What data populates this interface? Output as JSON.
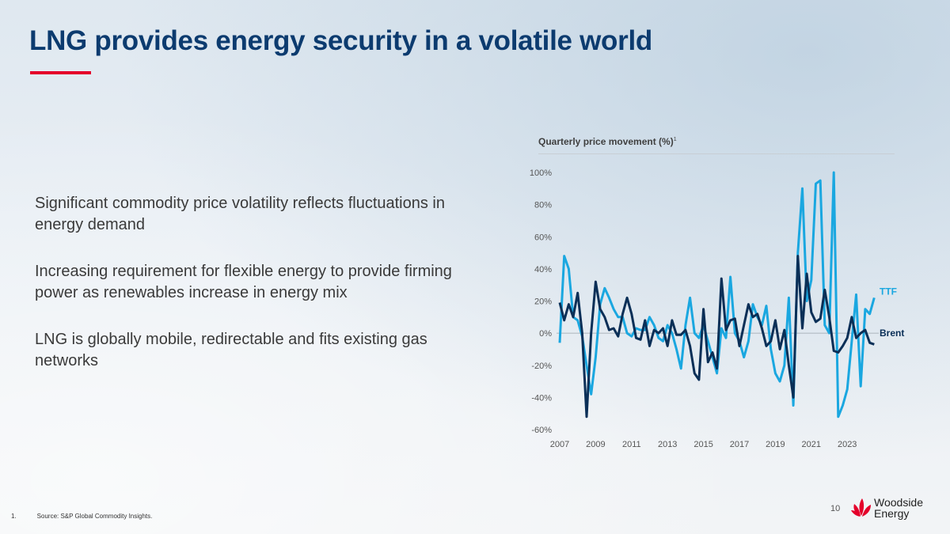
{
  "slide": {
    "title": "LNG provides energy security in a volatile world",
    "bullets": [
      "Significant commodity price volatility reflects fluctuations in energy demand",
      "Increasing requirement for flexible energy to provide firming power as renewables increase in energy mix",
      "LNG is globally mobile, redirectable and fits existing gas networks"
    ],
    "footnote_number": "1.",
    "footnote": "Source: S&P Global Commodity Insights.",
    "page_number": "10",
    "logo_text": "Woodside Energy",
    "colors": {
      "title": "#0c3b6f",
      "accent": "#e4002b",
      "ttf": "#1aa7e0",
      "brent": "#0a2f57"
    }
  },
  "chart_data": {
    "type": "line",
    "title": "Quarterly price movement (%)",
    "title_footnote": "1",
    "x_start": "2007Q1",
    "x_frequency": "quarterly",
    "xtick_labels": [
      "2007",
      "2009",
      "2011",
      "2013",
      "2015",
      "2017",
      "2019",
      "2021",
      "2023"
    ],
    "ytick_labels": [
      "100%",
      "80%",
      "60%",
      "40%",
      "20%",
      "0%",
      "-20%",
      "-40%",
      "-60%"
    ],
    "ylim": [
      -60,
      100
    ],
    "grid": false,
    "legend_placement": "line-end labels",
    "series": [
      {
        "name": "TTF",
        "color": "#1aa7e0",
        "values": [
          -6,
          48,
          40,
          10,
          8,
          -2,
          -20,
          -38,
          -15,
          18,
          28,
          22,
          15,
          10,
          10,
          0,
          -2,
          3,
          2,
          2,
          10,
          5,
          -3,
          -5,
          5,
          0,
          -10,
          -22,
          5,
          22,
          0,
          -3,
          5,
          -5,
          -15,
          -25,
          3,
          -3,
          35,
          0,
          -5,
          -15,
          -5,
          18,
          10,
          5,
          17,
          -10,
          -25,
          -30,
          -20,
          22,
          -45,
          50,
          90,
          20,
          33,
          93,
          95,
          5,
          0,
          100,
          -52,
          -45,
          -35,
          -5,
          24,
          -33,
          15,
          12,
          22
        ]
      },
      {
        "name": "Brent",
        "color": "#0a2f57",
        "values": [
          19,
          8,
          18,
          10,
          25,
          0,
          -52,
          0,
          32,
          15,
          10,
          2,
          3,
          -2,
          12,
          22,
          12,
          -3,
          -4,
          8,
          -8,
          2,
          0,
          3,
          -8,
          8,
          -1,
          -1,
          2,
          -8,
          -25,
          -29,
          15,
          -18,
          -12,
          -22,
          34,
          2,
          8,
          9,
          -8,
          5,
          18,
          10,
          12,
          3,
          -8,
          -5,
          8,
          -10,
          2,
          -20,
          -40,
          48,
          3,
          37,
          13,
          7,
          9,
          27,
          10,
          -11,
          -12,
          -8,
          -3,
          10,
          -3,
          0,
          2,
          -6,
          -7
        ]
      }
    ]
  }
}
